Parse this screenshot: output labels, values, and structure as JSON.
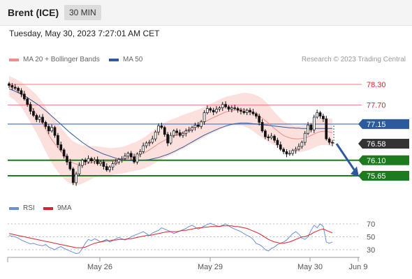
{
  "header": {
    "instrument": "Brent (ICE)",
    "timeframe": "30 MIN"
  },
  "datetime": "Tuesday, May 30, 2023 7:27:01 AM CET",
  "legend": {
    "ma20": {
      "label": "MA 20 + Bollinger Bands",
      "color": "#f08c8c"
    },
    "ma50": {
      "label": "MA 50",
      "color": "#2c5a9c"
    }
  },
  "copyright": "Research © 2023 Trading Central",
  "rsi_legend": {
    "rsi": {
      "label": "RSI",
      "color": "#6a8fdc"
    },
    "ma9": {
      "label": "9MA",
      "color": "#d9232a"
    }
  },
  "levels": [
    {
      "value": 78.3,
      "label": "78.30",
      "style": "resistance"
    },
    {
      "value": 77.7,
      "label": "77.70",
      "style": "resistance"
    },
    {
      "value": 77.15,
      "label": "77.15",
      "style": "pivot"
    },
    {
      "value": 76.58,
      "label": "76.58",
      "style": "last"
    },
    {
      "value": 76.1,
      "label": "76.10",
      "style": "support"
    },
    {
      "value": 75.65,
      "label": "75.65",
      "style": "support"
    }
  ],
  "x_ticks": [
    "May 26",
    "May 29",
    "May 30",
    "Jun 9"
  ],
  "rsi_ticks": [
    "70",
    "50",
    "30"
  ],
  "chart_data": {
    "type": "candlestick",
    "title": "Brent (ICE) 30 MIN",
    "price_range": [
      75.35,
      78.7
    ],
    "rsi_range": [
      20,
      80
    ],
    "closes": [
      78.27,
      78.22,
      78.19,
      78.12,
      78.02,
      77.88,
      77.72,
      77.52,
      77.4,
      77.28,
      77.35,
      77.2,
      77.08,
      76.95,
      77.05,
      76.82,
      76.55,
      76.4,
      76.22,
      76.05,
      75.85,
      75.45,
      75.7,
      75.95,
      76.1,
      76.05,
      76.15,
      76.08,
      76.12,
      76.0,
      76.05,
      75.92,
      75.82,
      75.9,
      76.0,
      76.05,
      76.12,
      76.15,
      76.22,
      76.3,
      76.2,
      76.05,
      76.28,
      76.35,
      76.52,
      76.6,
      76.62,
      76.72,
      76.92,
      77.1,
      77.05,
      76.85,
      76.6,
      76.82,
      76.95,
      76.9,
      76.82,
      76.88,
      76.95,
      76.98,
      77.05,
      77.12,
      77.08,
      77.22,
      77.48,
      77.6,
      77.55,
      77.5,
      77.58,
      77.62,
      77.72,
      77.65,
      77.58,
      77.62,
      77.6,
      77.55,
      77.52,
      77.48,
      77.55,
      77.5,
      77.45,
      77.38,
      77.2,
      76.95,
      76.78,
      76.75,
      76.8,
      76.68,
      76.55,
      76.42,
      76.35,
      76.28,
      76.3,
      76.38,
      76.42,
      76.5,
      76.62,
      76.88,
      77.12,
      76.98,
      77.35,
      77.48,
      77.38,
      77.3,
      76.72,
      76.62,
      76.6
    ],
    "ma20": [
      78.25,
      78.2,
      78.15,
      78.08,
      78.0,
      77.9,
      77.8,
      77.68,
      77.56,
      77.44,
      77.3,
      77.15,
      77.0,
      76.84,
      76.7,
      76.58,
      76.46,
      76.35,
      76.25,
      76.16,
      76.08,
      76.02,
      75.99,
      75.98,
      75.98,
      75.99,
      76.01,
      76.03,
      76.05,
      76.06,
      76.07,
      76.07,
      76.06,
      76.06,
      76.07,
      76.08,
      76.09,
      76.1,
      76.12,
      76.15,
      76.18,
      76.2,
      76.23,
      76.26,
      76.3,
      76.35,
      76.4,
      76.46,
      76.52,
      76.58,
      76.63,
      76.68,
      76.72,
      76.76,
      76.8,
      76.84,
      76.88,
      76.92,
      76.96,
      77.0,
      77.04,
      77.08,
      77.12,
      77.16,
      77.2,
      77.25,
      77.3,
      77.34,
      77.38,
      77.42,
      77.46,
      77.5,
      77.52,
      77.54,
      77.56,
      77.57,
      77.58,
      77.57,
      77.55,
      77.52,
      77.48,
      77.43,
      77.38,
      77.32,
      77.25,
      77.18,
      77.1,
      77.02,
      76.95,
      76.88,
      76.82,
      76.78,
      76.75,
      76.73,
      76.72,
      76.72,
      76.73,
      76.75,
      76.78,
      76.82,
      76.86,
      76.9,
      76.93,
      76.94,
      76.94,
      76.92,
      76.9
    ],
    "ma50": [
      78.17,
      78.14,
      78.1,
      78.06,
      78.02,
      77.97,
      77.92,
      77.86,
      77.8,
      77.74,
      77.68,
      77.61,
      77.54,
      77.46,
      77.38,
      77.3,
      77.22,
      77.14,
      77.06,
      76.98,
      76.9,
      76.83,
      76.76,
      76.69,
      76.62,
      76.56,
      76.5,
      76.45,
      76.4,
      76.36,
      76.32,
      76.28,
      76.25,
      76.22,
      76.19,
      76.16,
      76.14,
      76.12,
      76.11,
      76.1,
      76.09,
      76.09,
      76.09,
      76.1,
      76.1,
      76.11,
      76.12,
      76.14,
      76.16,
      76.18,
      76.21,
      76.24,
      76.27,
      76.31,
      76.35,
      76.39,
      76.44,
      76.48,
      76.53,
      76.58,
      76.63,
      76.68,
      76.73,
      76.78,
      76.83,
      76.87,
      76.91,
      76.95,
      76.99,
      77.03,
      77.06,
      77.09,
      77.12,
      77.14,
      77.16,
      77.17,
      77.18,
      77.18,
      77.18,
      77.17,
      77.16,
      77.15,
      77.14,
      77.13,
      77.12,
      77.11,
      77.1,
      77.09,
      77.08,
      77.07,
      77.06,
      77.05,
      77.04,
      77.04,
      77.03,
      77.03,
      77.02,
      77.02,
      77.02,
      77.02,
      77.02,
      77.02,
      77.02,
      77.02,
      77.02,
      77.02,
      77.02
    ],
    "bb_width": [
      0.1,
      0.12,
      0.15,
      0.2,
      0.26,
      0.33,
      0.42,
      0.52,
      0.6,
      0.68,
      0.75,
      0.82,
      0.88,
      0.92,
      0.96,
      0.99,
      1.0,
      1.0,
      0.98,
      0.95,
      0.9,
      0.85,
      0.8,
      0.74,
      0.68,
      0.62,
      0.56,
      0.5,
      0.46,
      0.42,
      0.38,
      0.36,
      0.34,
      0.32,
      0.31,
      0.3,
      0.3,
      0.3,
      0.31,
      0.32,
      0.34,
      0.36,
      0.38,
      0.41,
      0.44,
      0.47,
      0.5,
      0.52,
      0.54,
      0.56,
      0.57,
      0.58,
      0.58,
      0.58,
      0.57,
      0.56,
      0.55,
      0.54,
      0.52,
      0.5,
      0.48,
      0.46,
      0.44,
      0.43,
      0.42,
      0.42,
      0.42,
      0.42,
      0.42,
      0.42,
      0.42,
      0.42,
      0.42,
      0.42,
      0.43,
      0.45,
      0.48,
      0.52,
      0.56,
      0.6,
      0.64,
      0.68,
      0.7,
      0.7,
      0.68,
      0.64,
      0.58,
      0.52,
      0.46,
      0.4,
      0.36,
      0.33,
      0.31,
      0.3,
      0.3,
      0.3,
      0.3,
      0.3,
      0.31,
      0.32,
      0.32,
      0.32,
      0.32,
      0.32,
      0.32,
      0.32,
      0.32
    ],
    "rsi": [
      52,
      51,
      50,
      48,
      45,
      43,
      41,
      39,
      40,
      38,
      37,
      36,
      38,
      34,
      32,
      30,
      33,
      35,
      32,
      30,
      28,
      26,
      24,
      25,
      32,
      40,
      46,
      44,
      47,
      45,
      42,
      44,
      46,
      42,
      44,
      47,
      49,
      47,
      45,
      47,
      50,
      52,
      54,
      56,
      58,
      55,
      52,
      56,
      58,
      60,
      64,
      62,
      60,
      58,
      55,
      57,
      59,
      61,
      63,
      66,
      68,
      65,
      62,
      64,
      67,
      69,
      71,
      69,
      67,
      66,
      68,
      70,
      67,
      64,
      62,
      60,
      58,
      55,
      52,
      50,
      46,
      40,
      38,
      35,
      30,
      28,
      32,
      34,
      38,
      40,
      42,
      45,
      50,
      55,
      58,
      54,
      48,
      46,
      50,
      60,
      68,
      64,
      70,
      66,
      42,
      40,
      42
    ],
    "rsi9ma": [
      55,
      54,
      53,
      52,
      51,
      50,
      49,
      48,
      47,
      46,
      45,
      44,
      43,
      42,
      41,
      40,
      39,
      38,
      37,
      36,
      35,
      34,
      33,
      33,
      33,
      34,
      36,
      38,
      40,
      41,
      42,
      43,
      44,
      44,
      45,
      45,
      46,
      46,
      46,
      47,
      47,
      48,
      49,
      50,
      51,
      52,
      52,
      53,
      54,
      55,
      56,
      57,
      58,
      58,
      58,
      58,
      59,
      60,
      60,
      61,
      62,
      63,
      64,
      64,
      65,
      65,
      66,
      66,
      66,
      66,
      67,
      67,
      67,
      67,
      66,
      66,
      65,
      64,
      63,
      61,
      59,
      57,
      55,
      52,
      49,
      46,
      44,
      42,
      41,
      40,
      40,
      41,
      42,
      44,
      46,
      48,
      50,
      50,
      52,
      54,
      57,
      59,
      61,
      62,
      60,
      58,
      56
    ]
  }
}
